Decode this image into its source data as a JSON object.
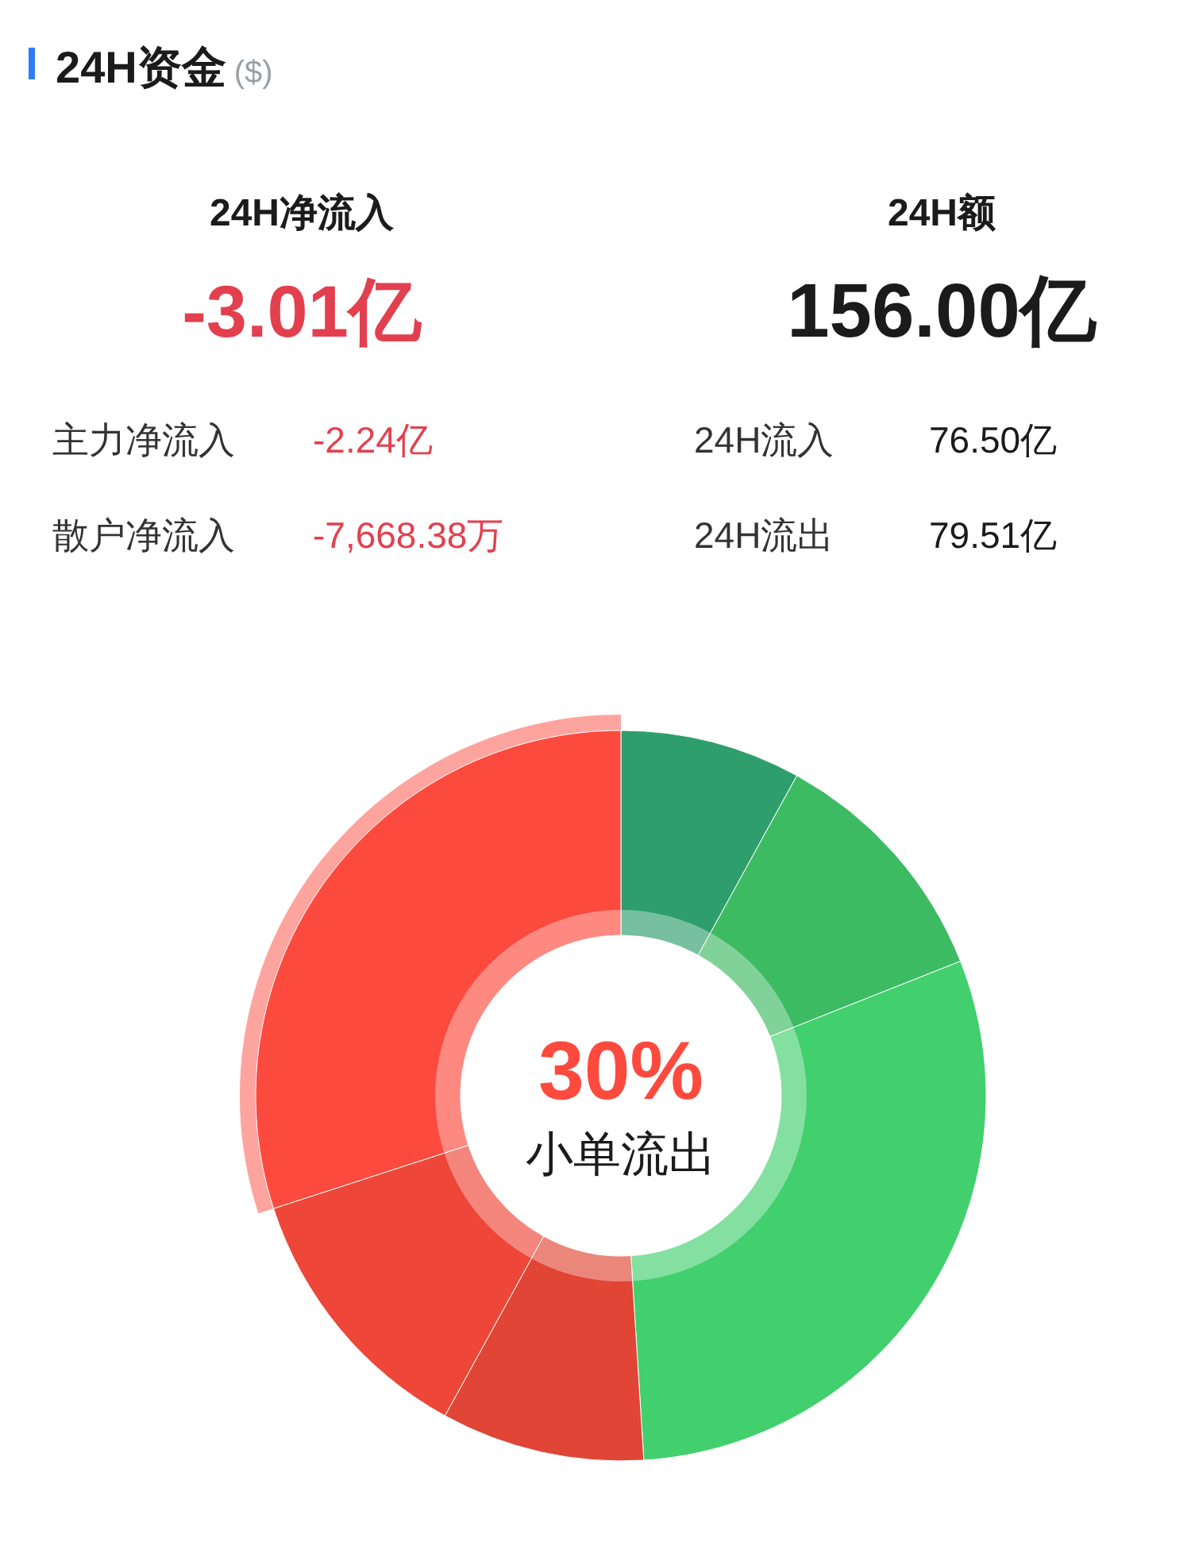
{
  "chart_data": [
    {
      "type": "other",
      "title": "24H资金",
      "subtitle": "($)",
      "annotations": [
        "24H净流入",
        "-3.01亿",
        "24H额",
        "156.00亿",
        "主力净流入",
        "-2.24亿",
        "24H流入",
        "76.50亿",
        "散户净流入",
        "-7,668.38万",
        "24H流出",
        "79.51亿"
      ]
    },
    {
      "type": "donut",
      "categories": [
        null,
        null,
        null,
        null,
        null,
        "小单流出"
      ],
      "values": [
        8,
        11,
        30,
        9,
        12,
        30
      ],
      "colors": [
        "#2e9e6c",
        "#3dbb63",
        "#42cf6e",
        "#e04535",
        "#ee4638",
        "#fd4a3e"
      ],
      "value_labels": [
        null,
        null,
        null,
        null,
        null,
        "30%"
      ]
    }
  ]
}
